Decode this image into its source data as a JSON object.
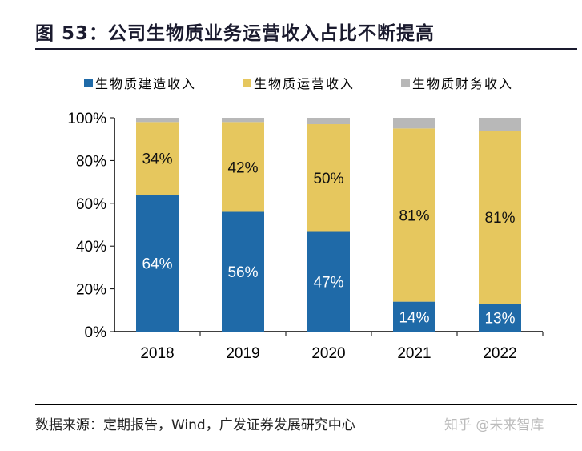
{
  "title": "图 53：公司生物质业务运营收入占比不断提高",
  "source": "数据来源：定期报告，Wind，广发证券发展研究中心",
  "watermark": "知乎 @未来智库",
  "chart_data": {
    "type": "bar",
    "stacked": true,
    "categories": [
      "2018",
      "2019",
      "2020",
      "2021",
      "2022"
    ],
    "series": [
      {
        "name": "生物质建造收入",
        "color": "#1f6aa8",
        "values": [
          64,
          56,
          47,
          14,
          13
        ],
        "labels": [
          "64%",
          "56%",
          "47%",
          "14%",
          "13%"
        ]
      },
      {
        "name": "生物质运营收入",
        "color": "#e6c75e",
        "values": [
          34,
          42,
          50,
          81,
          81
        ],
        "labels": [
          "34%",
          "42%",
          "50%",
          "81%",
          "81%"
        ]
      },
      {
        "name": "生物质财务收入",
        "color": "#b8b8b8",
        "values": [
          2,
          2,
          3,
          5,
          6
        ],
        "labels": []
      }
    ],
    "ylim": [
      0,
      100
    ],
    "yticks": [
      "0%",
      "20%",
      "40%",
      "60%",
      "80%",
      "100%"
    ],
    "legend": "top",
    "grid": false
  }
}
